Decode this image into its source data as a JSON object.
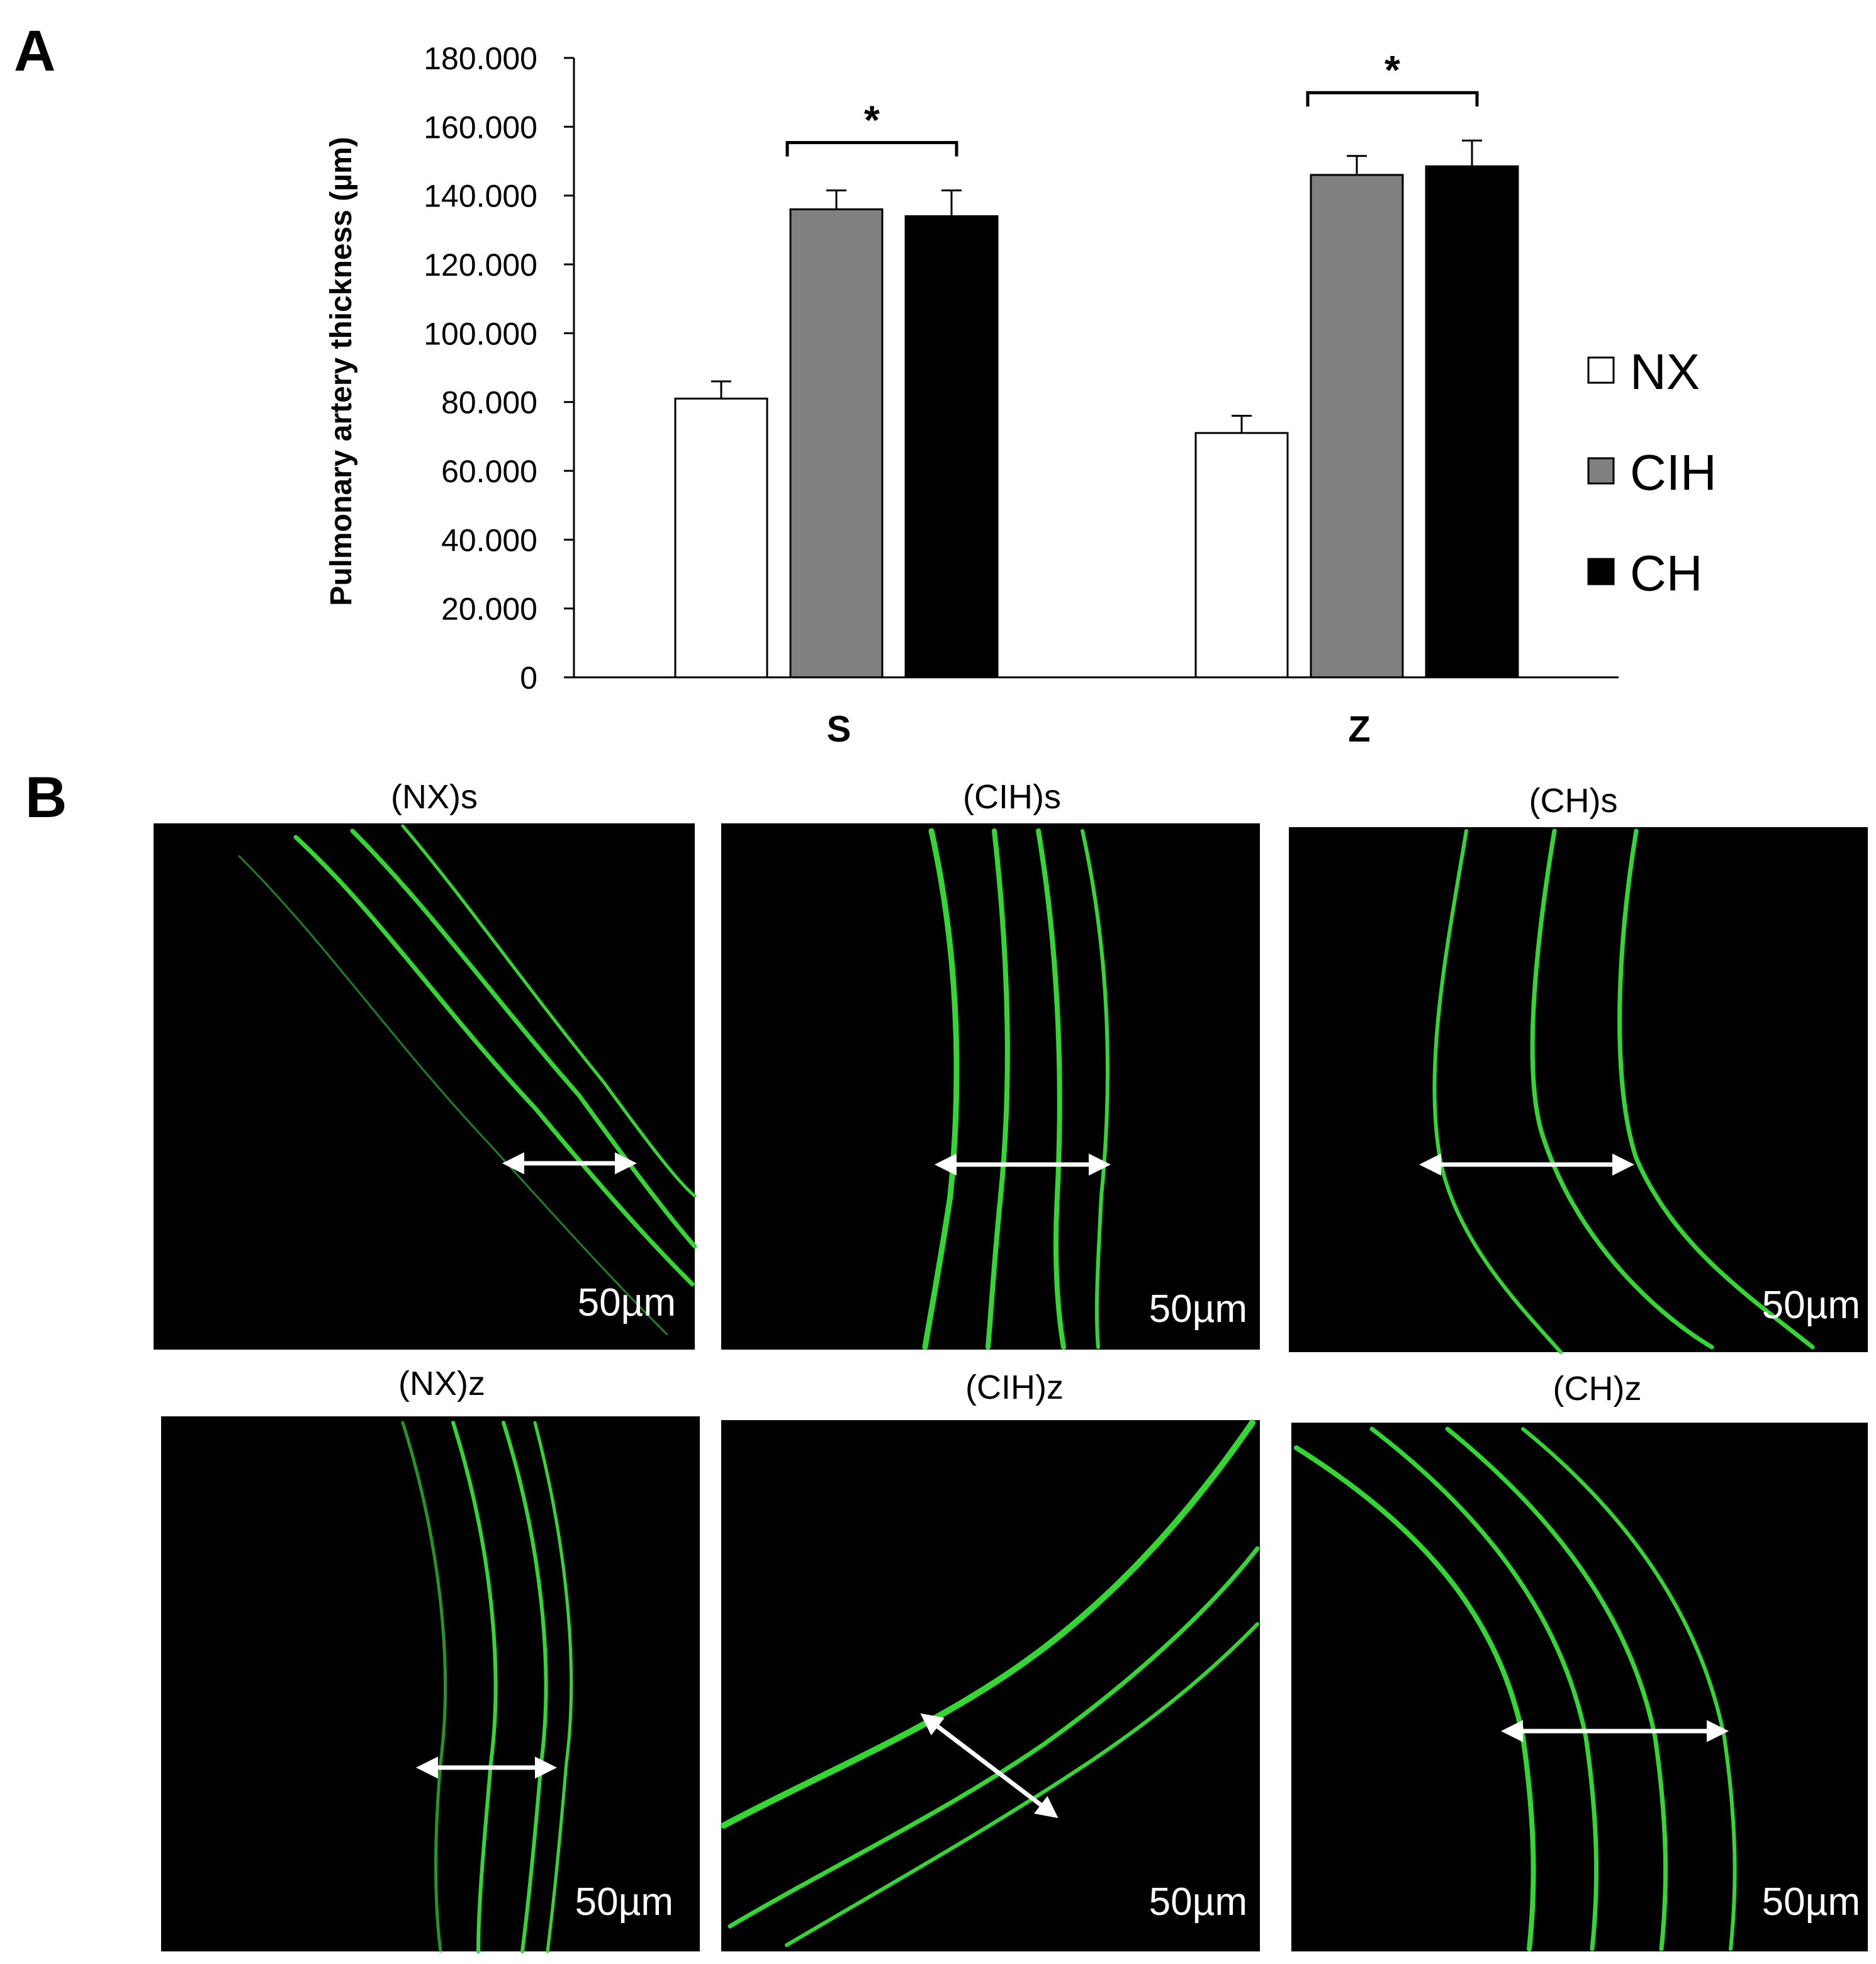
{
  "panels": {
    "a": "A",
    "b": "B"
  },
  "chart_data": {
    "type": "bar",
    "ylabel": "Pulmonary artery thickness (µm)",
    "xlabel": "",
    "ylim": [
      0,
      180
    ],
    "yticks": [
      "0",
      "20.000",
      "40.000",
      "60.000",
      "80.000",
      "100.000",
      "120.000",
      "140.000",
      "160.000",
      "180.000"
    ],
    "categories": [
      "S",
      "Z"
    ],
    "series": [
      {
        "name": "NX",
        "color": "#ffffff",
        "values": [
          81,
          71
        ],
        "errors": [
          5,
          5
        ]
      },
      {
        "name": "CIH",
        "color": "#808080",
        "values": [
          136,
          146
        ],
        "errors": [
          5.5,
          5.5
        ]
      },
      {
        "name": "CH",
        "color": "#000000",
        "values": [
          134,
          148.5
        ],
        "errors": [
          7.5,
          7.5
        ]
      }
    ],
    "significance": [
      {
        "category": "S",
        "label": "*"
      },
      {
        "category": "Z",
        "label": "*"
      }
    ],
    "legend_position": "right"
  },
  "micrographs": [
    {
      "title": "(NX)s",
      "scale": "50µm"
    },
    {
      "title": "(CIH)s",
      "scale": "50µm"
    },
    {
      "title": "(CH)s",
      "scale": "50µm"
    },
    {
      "title": "(NX)z",
      "scale": "50µm"
    },
    {
      "title": "(CIH)z",
      "scale": "50µm"
    },
    {
      "title": "(CH)z",
      "scale": "50µm"
    }
  ]
}
